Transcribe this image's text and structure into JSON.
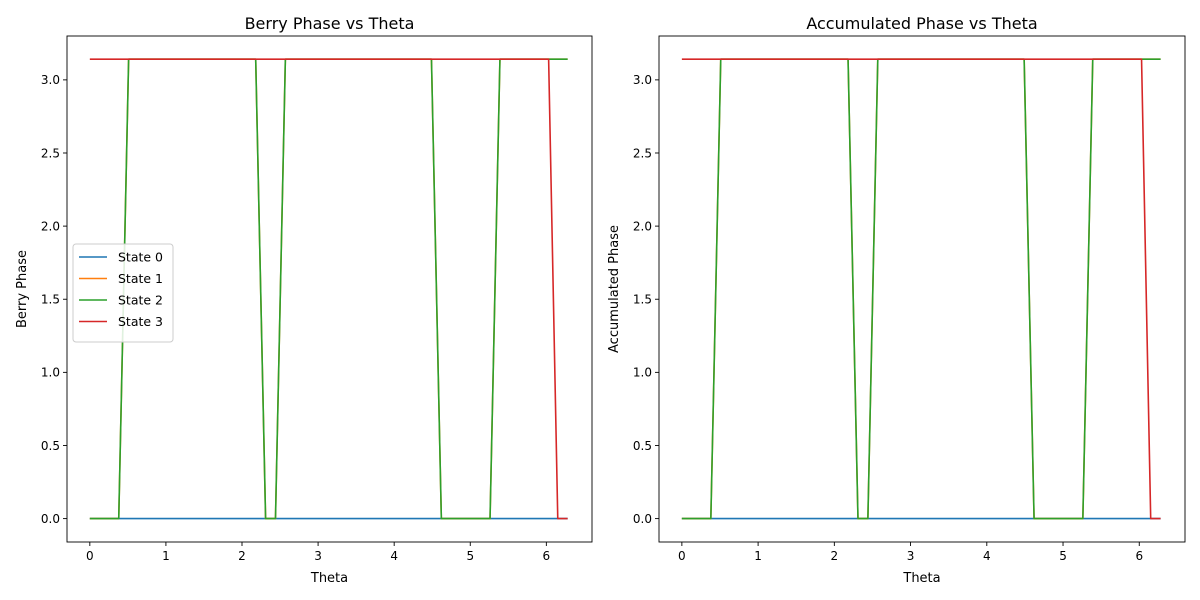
{
  "chart_data": [
    {
      "type": "line",
      "title": "Berry Phase vs Theta",
      "xlabel": "Theta",
      "ylabel": "Berry Phase",
      "xlim": [
        -0.3,
        6.6
      ],
      "ylim": [
        -0.16,
        3.3
      ],
      "xticks": [
        "0",
        "1",
        "2",
        "3",
        "4",
        "5",
        "6"
      ],
      "yticks": [
        "0.0",
        "0.5",
        "1.0",
        "1.5",
        "2.0",
        "2.5",
        "3.0"
      ],
      "grid": false,
      "legend_position": "center-left",
      "series": [
        {
          "name": "State 0",
          "color": "#1f77b4",
          "x": [
            0,
            6.28
          ],
          "y": [
            0,
            0
          ]
        },
        {
          "name": "State 1",
          "color": "#ff7f0e",
          "x": [
            0,
            0.38,
            0.51,
            2.18,
            2.31,
            2.44,
            2.57,
            4.49,
            4.62,
            5.26,
            5.39,
            6.28
          ],
          "y": [
            0,
            0,
            3.1416,
            3.1416,
            0,
            0,
            3.1416,
            3.1416,
            0,
            0,
            3.1416,
            3.1416
          ]
        },
        {
          "name": "State 2",
          "color": "#2ca02c",
          "x": [
            0,
            0.38,
            0.51,
            2.18,
            2.31,
            2.44,
            2.57,
            4.49,
            4.62,
            5.26,
            5.39,
            6.28
          ],
          "y": [
            0,
            0,
            3.1416,
            3.1416,
            0,
            0,
            3.1416,
            3.1416,
            0,
            0,
            3.1416,
            3.1416
          ]
        },
        {
          "name": "State 3",
          "color": "#d62728",
          "x": [
            0,
            6.03,
            6.15,
            6.28
          ],
          "y": [
            3.1416,
            3.1416,
            0,
            0
          ]
        }
      ]
    },
    {
      "type": "line",
      "title": "Accumulated Phase vs Theta",
      "xlabel": "Theta",
      "ylabel": "Accumulated Phase",
      "xlim": [
        -0.3,
        6.6
      ],
      "ylim": [
        -0.16,
        3.3
      ],
      "xticks": [
        "0",
        "1",
        "2",
        "3",
        "4",
        "5",
        "6"
      ],
      "yticks": [
        "0.0",
        "0.5",
        "1.0",
        "1.5",
        "2.0",
        "2.5",
        "3.0"
      ],
      "grid": false,
      "series": [
        {
          "color": "#1f77b4",
          "x": [
            0,
            6.28
          ],
          "y": [
            0,
            0
          ]
        },
        {
          "color": "#ff7f0e",
          "x": [
            0,
            0.38,
            0.51,
            2.18,
            2.31,
            2.44,
            2.57,
            4.49,
            4.62,
            5.26,
            5.39,
            6.28
          ],
          "y": [
            0,
            0,
            3.1416,
            3.1416,
            0,
            0,
            3.1416,
            3.1416,
            0,
            0,
            3.1416,
            3.1416
          ]
        },
        {
          "color": "#2ca02c",
          "x": [
            0,
            0.38,
            0.51,
            2.18,
            2.31,
            2.44,
            2.57,
            4.49,
            4.62,
            5.26,
            5.39,
            6.28
          ],
          "y": [
            0,
            0,
            3.1416,
            3.1416,
            0,
            0,
            3.1416,
            3.1416,
            0,
            0,
            3.1416,
            3.1416
          ]
        },
        {
          "color": "#d62728",
          "x": [
            0,
            6.03,
            6.15,
            6.28
          ],
          "y": [
            3.1416,
            3.1416,
            0,
            0
          ]
        }
      ]
    }
  ]
}
